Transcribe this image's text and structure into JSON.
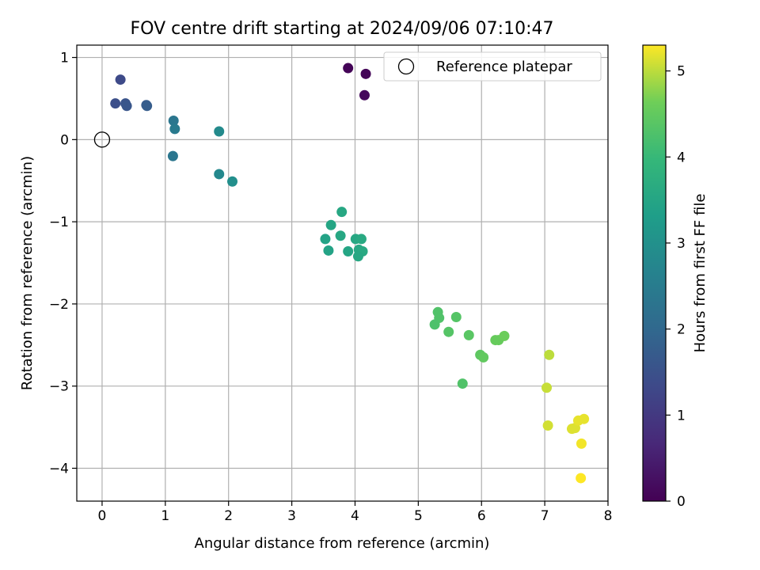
{
  "chart_data": {
    "type": "scatter",
    "title": "FOV centre drift starting at 2024/09/06 07:10:47",
    "xlabel": "Angular distance from reference (arcmin)",
    "ylabel": "Rotation from reference (arcmin)",
    "xlim": [
      -0.4,
      8.0
    ],
    "ylim": [
      -4.4,
      1.15
    ],
    "x_ticks": [
      0,
      1,
      2,
      3,
      4,
      5,
      6,
      7,
      8
    ],
    "y_ticks": [
      1,
      0,
      -1,
      -2,
      -3,
      -4
    ],
    "x_tick_labels": [
      "0",
      "1",
      "2",
      "3",
      "4",
      "5",
      "6",
      "7",
      "8"
    ],
    "y_tick_labels": [
      "1",
      "0",
      "−1",
      "−2",
      "−3",
      "−4"
    ],
    "grid": true,
    "legend": {
      "placement": "top-right",
      "entries": [
        "Reference platepar"
      ]
    },
    "reference_point": {
      "name": "Reference platepar",
      "x": 0,
      "y": 0
    },
    "colorbar": {
      "label": "Hours from first FF file",
      "range": [
        0,
        5.3
      ],
      "ticks": [
        0,
        1,
        2,
        3,
        4,
        5
      ],
      "tick_labels": [
        "0",
        "1",
        "2",
        "3",
        "4",
        "5"
      ],
      "colormap": "viridis"
    },
    "points": [
      {
        "x": 3.89,
        "y": 0.87,
        "t": 0.05
      },
      {
        "x": 4.17,
        "y": 0.8,
        "t": 0.08
      },
      {
        "x": 4.15,
        "y": 0.54,
        "t": 0.12
      },
      {
        "x": 0.29,
        "y": 0.73,
        "t": 1.35
      },
      {
        "x": 0.21,
        "y": 0.44,
        "t": 1.45
      },
      {
        "x": 0.37,
        "y": 0.44,
        "t": 1.55
      },
      {
        "x": 0.39,
        "y": 0.41,
        "t": 1.6
      },
      {
        "x": 0.7,
        "y": 0.42,
        "t": 1.7
      },
      {
        "x": 0.71,
        "y": 0.41,
        "t": 1.75
      },
      {
        "x": 1.13,
        "y": 0.23,
        "t": 2.35
      },
      {
        "x": 1.15,
        "y": 0.13,
        "t": 2.45
      },
      {
        "x": 1.12,
        "y": -0.2,
        "t": 2.35
      },
      {
        "x": 1.85,
        "y": 0.1,
        "t": 2.85
      },
      {
        "x": 1.85,
        "y": -0.42,
        "t": 2.8
      },
      {
        "x": 2.06,
        "y": -0.51,
        "t": 2.95
      },
      {
        "x": 3.79,
        "y": -0.88,
        "t": 3.55
      },
      {
        "x": 3.62,
        "y": -1.04,
        "t": 3.5
      },
      {
        "x": 3.77,
        "y": -1.17,
        "t": 3.55
      },
      {
        "x": 3.53,
        "y": -1.21,
        "t": 3.45
      },
      {
        "x": 3.58,
        "y": -1.35,
        "t": 3.45
      },
      {
        "x": 3.89,
        "y": -1.36,
        "t": 3.5
      },
      {
        "x": 4.01,
        "y": -1.21,
        "t": 3.55
      },
      {
        "x": 4.1,
        "y": -1.21,
        "t": 3.6
      },
      {
        "x": 4.06,
        "y": -1.34,
        "t": 3.55
      },
      {
        "x": 4.12,
        "y": -1.36,
        "t": 3.6
      },
      {
        "x": 4.05,
        "y": -1.42,
        "t": 3.55
      },
      {
        "x": 5.31,
        "y": -2.1,
        "t": 4.3
      },
      {
        "x": 5.33,
        "y": -2.17,
        "t": 4.3
      },
      {
        "x": 5.26,
        "y": -2.25,
        "t": 4.25
      },
      {
        "x": 5.48,
        "y": -2.34,
        "t": 4.35
      },
      {
        "x": 5.6,
        "y": -2.16,
        "t": 4.35
      },
      {
        "x": 5.8,
        "y": -2.38,
        "t": 4.4
      },
      {
        "x": 5.7,
        "y": -2.97,
        "t": 4.3
      },
      {
        "x": 5.98,
        "y": -2.62,
        "t": 4.45
      },
      {
        "x": 6.03,
        "y": -2.65,
        "t": 4.5
      },
      {
        "x": 6.22,
        "y": -2.44,
        "t": 4.55
      },
      {
        "x": 6.27,
        "y": -2.44,
        "t": 4.55
      },
      {
        "x": 6.36,
        "y": -2.39,
        "t": 4.6
      },
      {
        "x": 7.07,
        "y": -2.62,
        "t": 5.0
      },
      {
        "x": 7.03,
        "y": -3.02,
        "t": 5.05
      },
      {
        "x": 7.05,
        "y": -3.48,
        "t": 5.1
      },
      {
        "x": 7.43,
        "y": -3.52,
        "t": 5.15
      },
      {
        "x": 7.48,
        "y": -3.51,
        "t": 5.15
      },
      {
        "x": 7.53,
        "y": -3.42,
        "t": 5.2
      },
      {
        "x": 7.62,
        "y": -3.4,
        "t": 5.2
      },
      {
        "x": 7.58,
        "y": -3.7,
        "t": 5.25
      },
      {
        "x": 7.57,
        "y": -4.12,
        "t": 5.3
      }
    ]
  }
}
